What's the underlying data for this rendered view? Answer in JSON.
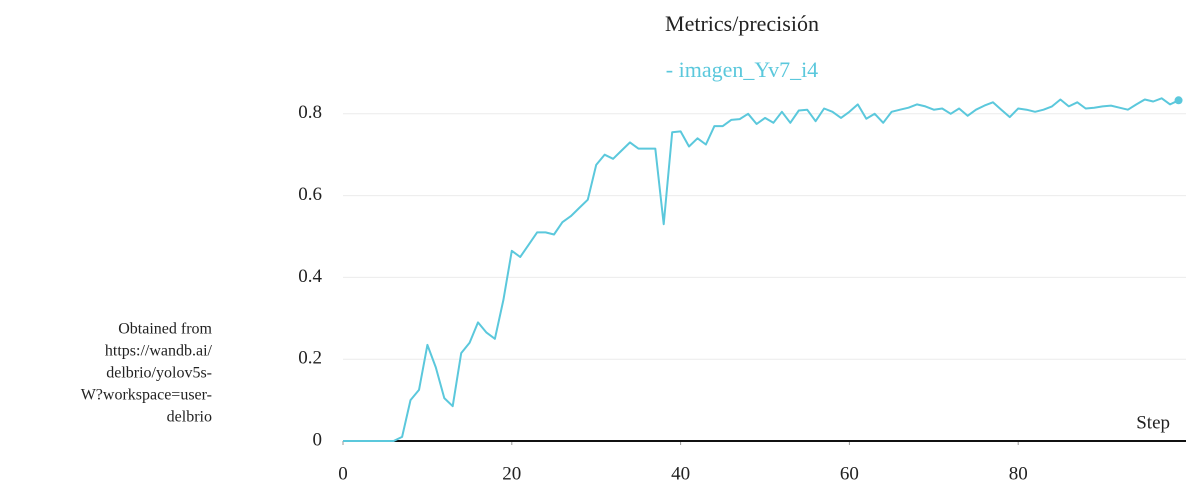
{
  "chart_data": {
    "type": "line",
    "title": "Metrics/precisión",
    "note": [
      "Obtained from",
      "https://wandb.ai/",
      "delbrio/yolov5s-",
      "W?workspace=user-",
      "delbrio"
    ],
    "xlabel": "Step",
    "x": [
      0,
      1,
      2,
      3,
      4,
      5,
      6,
      7,
      8,
      9,
      10,
      11,
      12,
      13,
      14,
      15,
      16,
      17,
      18,
      19,
      20,
      21,
      22,
      23,
      24,
      25,
      26,
      27,
      28,
      29,
      30,
      31,
      32,
      33,
      34,
      35,
      36,
      37,
      38,
      39,
      40,
      41,
      42,
      43,
      44,
      45,
      46,
      47,
      48,
      49,
      50,
      51,
      52,
      53,
      54,
      55,
      56,
      57,
      58,
      59,
      60,
      61,
      62,
      63,
      64,
      65,
      66,
      67,
      68,
      69,
      70,
      71,
      72,
      73,
      74,
      75,
      76,
      77,
      78,
      79,
      80,
      81,
      82,
      83,
      84,
      85,
      86,
      87,
      88,
      89,
      90,
      91,
      92,
      93,
      94,
      95,
      96,
      97,
      98,
      99
    ],
    "series": [
      {
        "name": "- imagen_Yv7_i4",
        "color": "#5bc8dc",
        "values": [
          0,
          0,
          0,
          0,
          0,
          0,
          0,
          0.01,
          0.1,
          0.125,
          0.235,
          0.18,
          0.105,
          0.085,
          0.215,
          0.24,
          0.29,
          0.265,
          0.25,
          0.345,
          0.465,
          0.45,
          0.48,
          0.51,
          0.51,
          0.505,
          0.535,
          0.55,
          0.57,
          0.59,
          0.675,
          0.7,
          0.69,
          0.71,
          0.73,
          0.715,
          0.715,
          0.715,
          0.53,
          0.755,
          0.757,
          0.72,
          0.74,
          0.725,
          0.77,
          0.77,
          0.785,
          0.787,
          0.8,
          0.775,
          0.79,
          0.778,
          0.805,
          0.778,
          0.808,
          0.81,
          0.782,
          0.813,
          0.805,
          0.79,
          0.805,
          0.823,
          0.788,
          0.8,
          0.778,
          0.805,
          0.81,
          0.815,
          0.823,
          0.818,
          0.81,
          0.813,
          0.8,
          0.813,
          0.795,
          0.81,
          0.82,
          0.828,
          0.81,
          0.792,
          0.813,
          0.81,
          0.805,
          0.81,
          0.818,
          0.835,
          0.818,
          0.828,
          0.813,
          0.815,
          0.818,
          0.82,
          0.815,
          0.81,
          0.823,
          0.835,
          0.83,
          0.838,
          0.823,
          0.833
        ]
      }
    ],
    "xlim": [
      0,
      99.5
    ],
    "ylim": [
      0,
      0.85
    ],
    "xticks": [
      0,
      20,
      40,
      60,
      80
    ],
    "yticks": [
      0,
      0.2,
      0.4,
      0.6,
      0.8
    ],
    "grid": true
  }
}
